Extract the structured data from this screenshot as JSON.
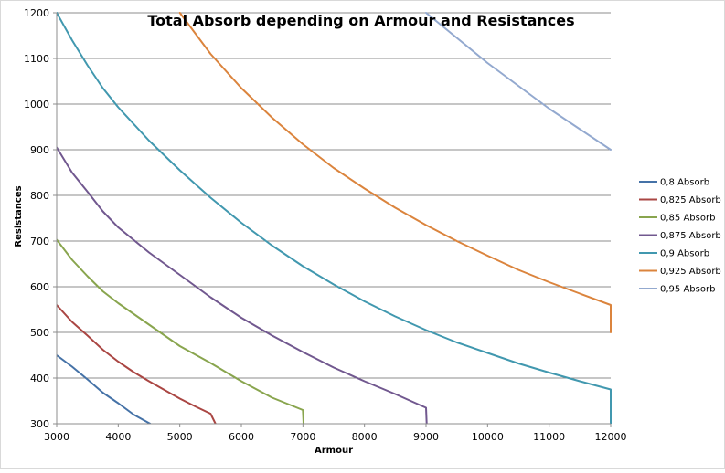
{
  "chart_data": {
    "type": "line",
    "title": "Total Absorb depending on Armour and Resistances",
    "xlabel": "Armour",
    "ylabel": "Resistances",
    "xlim": [
      3000,
      12000
    ],
    "ylim": [
      300,
      1200
    ],
    "xticks": [
      3000,
      4000,
      5000,
      6000,
      7000,
      8000,
      9000,
      10000,
      11000,
      12000
    ],
    "yticks": [
      300,
      400,
      500,
      600,
      700,
      800,
      900,
      1000,
      1100,
      1200
    ],
    "grid": "horizontal",
    "legend_position": "right",
    "series": [
      {
        "name": "0,8 Absorb",
        "color": "#4572a7",
        "points": [
          [
            3000,
            450
          ],
          [
            3250,
            425
          ],
          [
            3500,
            397
          ],
          [
            3750,
            368
          ],
          [
            4000,
            345
          ],
          [
            4250,
            320
          ],
          [
            4520,
            300
          ]
        ]
      },
      {
        "name": "0,825 Absorb",
        "color": "#aa4643",
        "points": [
          [
            3000,
            560
          ],
          [
            3250,
            523
          ],
          [
            3500,
            493
          ],
          [
            3750,
            462
          ],
          [
            4000,
            436
          ],
          [
            4250,
            413
          ],
          [
            4500,
            393
          ],
          [
            4750,
            374
          ],
          [
            5000,
            355
          ],
          [
            5250,
            338
          ],
          [
            5500,
            322
          ],
          [
            5580,
            300
          ]
        ]
      },
      {
        "name": "0,85 Absorb",
        "color": "#89a54e",
        "points": [
          [
            3000,
            703
          ],
          [
            3250,
            659
          ],
          [
            3500,
            623
          ],
          [
            3750,
            590
          ],
          [
            4000,
            564
          ],
          [
            4500,
            517
          ],
          [
            5000,
            470
          ],
          [
            5500,
            433
          ],
          [
            6000,
            393
          ],
          [
            6500,
            357
          ],
          [
            7000,
            330
          ],
          [
            7010,
            300
          ]
        ]
      },
      {
        "name": "0,875 Absorb",
        "color": "#71588f",
        "points": [
          [
            3000,
            905
          ],
          [
            3250,
            850
          ],
          [
            3500,
            808
          ],
          [
            3750,
            765
          ],
          [
            4000,
            730
          ],
          [
            4500,
            675
          ],
          [
            5000,
            626
          ],
          [
            5500,
            577
          ],
          [
            6000,
            532
          ],
          [
            6500,
            493
          ],
          [
            7000,
            457
          ],
          [
            7500,
            423
          ],
          [
            8000,
            393
          ],
          [
            8500,
            365
          ],
          [
            9000,
            335
          ],
          [
            9010,
            300
          ]
        ]
      },
      {
        "name": "0,9 Absorb",
        "color": "#4198af",
        "points": [
          [
            3000,
            1200
          ],
          [
            3250,
            1140
          ],
          [
            3500,
            1085
          ],
          [
            3750,
            1035
          ],
          [
            4000,
            993
          ],
          [
            4500,
            920
          ],
          [
            5000,
            855
          ],
          [
            5500,
            795
          ],
          [
            6000,
            740
          ],
          [
            6500,
            690
          ],
          [
            7000,
            645
          ],
          [
            7500,
            605
          ],
          [
            8000,
            568
          ],
          [
            8500,
            535
          ],
          [
            9000,
            505
          ],
          [
            9500,
            478
          ],
          [
            10000,
            455
          ],
          [
            10500,
            432
          ],
          [
            11000,
            412
          ],
          [
            11500,
            393
          ],
          [
            12000,
            375
          ],
          [
            12000,
            300
          ]
        ]
      },
      {
        "name": "0,925 Absorb",
        "color": "#db843d",
        "points": [
          [
            5000,
            1200
          ],
          [
            5500,
            1110
          ],
          [
            6000,
            1035
          ],
          [
            6500,
            970
          ],
          [
            7000,
            912
          ],
          [
            7500,
            860
          ],
          [
            8000,
            815
          ],
          [
            8500,
            773
          ],
          [
            9000,
            735
          ],
          [
            9500,
            700
          ],
          [
            10000,
            668
          ],
          [
            10500,
            637
          ],
          [
            11000,
            610
          ],
          [
            11500,
            585
          ],
          [
            12000,
            560
          ],
          [
            12000,
            500
          ]
        ]
      },
      {
        "name": "0,95 Absorb",
        "color": "#93a9cf",
        "points": [
          [
            9000,
            1200
          ],
          [
            9500,
            1145
          ],
          [
            10000,
            1090
          ],
          [
            10500,
            1040
          ],
          [
            11000,
            990
          ],
          [
            11500,
            945
          ],
          [
            12000,
            900
          ]
        ]
      }
    ]
  }
}
